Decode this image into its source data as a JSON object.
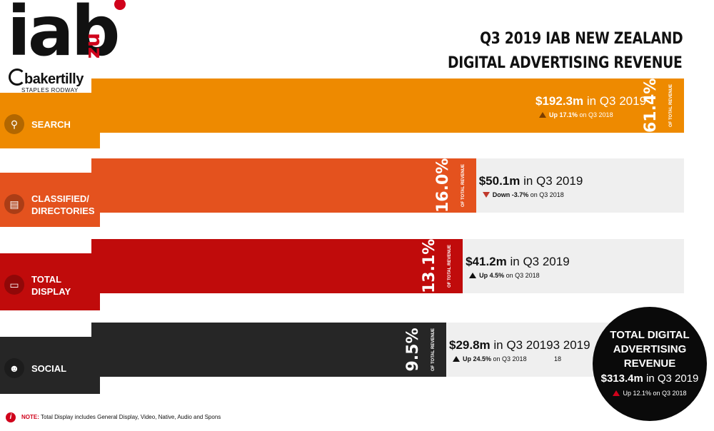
{
  "header": {
    "logo_iab": "iab",
    "logo_nz": "nz",
    "logo_sub": "bakertilly",
    "logo_sub2": "STAPLES RODWAY",
    "title_line1": "Q3 2019 IAB NEW ZEALAND",
    "title_line2": "DIGITAL ADVERTISING REVENUE"
  },
  "chart_data": {
    "type": "bar",
    "title": "Q3 2019 IAB NEW ZEALAND DIGITAL ADVERTISING REVENUE",
    "categories": [
      "SEARCH",
      "CLASSIFIED/ DIRECTORIES",
      "TOTAL DISPLAY",
      "SOCIAL"
    ],
    "values": [
      61.4,
      16.0,
      13.1,
      9.5
    ],
    "unit": "% OF TOTAL REVENUE",
    "items": [
      {
        "label_line1": "SEARCH",
        "label_line2": "",
        "icon": "search-icon",
        "color": "#ee8a00",
        "box_color": "#ee8a00",
        "pct": "61.4%",
        "pct_sub": "OF TOTAL REVENUE",
        "amount": "$192.3m",
        "amount_suffix": " in Q3 2019",
        "change_dir": "up",
        "change_bold": "Up 17.1%",
        "change_rest": " on Q3 2018"
      },
      {
        "label_line1": "CLASSIFIED/",
        "label_line2": "DIRECTORIES",
        "icon": "newspaper-icon",
        "color": "#e4521e",
        "box_color": "#e4521e",
        "pct": "16.0%",
        "pct_sub": "OF TOTAL REVENUE",
        "amount": "$50.1m",
        "amount_suffix": " in Q3 2019",
        "change_dir": "down",
        "change_bold": "Down -3.7%",
        "change_rest": " on Q3 2018"
      },
      {
        "label_line1": "TOTAL",
        "label_line2": "DISPLAY",
        "icon": "monitor-icon",
        "color": "#c00b0b",
        "box_color": "#c00b0b",
        "pct": "13.1%",
        "pct_sub": "OF TOTAL REVENUE",
        "amount": "$41.2m",
        "amount_suffix": " in Q3 2019",
        "change_dir": "up",
        "change_bold": "Up 4.5%",
        "change_rest": " on Q3 2018"
      },
      {
        "label_line1": "SOCIAL",
        "label_line2": "",
        "icon": "people-icon",
        "color": "#262626",
        "box_color": "#262626",
        "pct": "9.5%",
        "pct_sub": "OF TOTAL REVENUE",
        "amount": "$29.8m",
        "amount_suffix": " in Q3 20193 2019",
        "change_dir": "up",
        "change_bold": "Up 24.5%",
        "change_rest": " on Q3 2018",
        "extra": "18"
      }
    ]
  },
  "total": {
    "line1": "TOTAL DIGITAL",
    "line2": "ADVERTISING",
    "line3": "REVENUE",
    "amount": "$313.4m",
    "amount_suffix": " in Q3 2019",
    "change": "Up 12.1% on Q3 2018"
  },
  "note": {
    "label": "NOTE:",
    "text": " Total Display includes General Display, Video, Native, Audio and Spons"
  }
}
